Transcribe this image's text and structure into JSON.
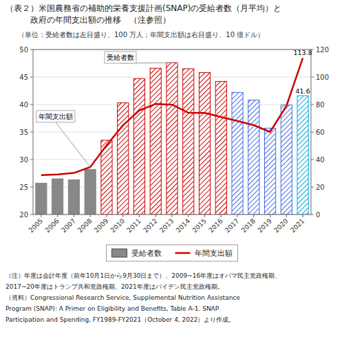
{
  "chart_data": {
    "type": "bar",
    "title": [
      "（表２）米国農務省の補助的栄養支援計画(SNAP)の受給者数（月平均）と",
      "　　　政府の年間支出額の推移　（注参照）"
    ],
    "subtitle": "（単位：受給者数は左目盛り、100 万人；年間支出額は右目盛り、10 億ドル）",
    "annotations": [
      "受給者数",
      "年間支出額"
    ],
    "notes": [
      "（注）年度は会計年度（前年10月1日から9月30日まで）、2009~16年度はオバマ民主党政権期、",
      "2017~20年度はトランプ共和党政権期、2021年度はバイデン民主党政権期。",
      "（資料）Congressional Research Service, Supplemental Nutrition Assistance",
      "Program (SNAP): A Primer on Eligibility and Benefits, Table A-1. SNAP",
      "Participation and Spending, FY1989-FY2021（October 4, 2022）より作成。"
    ],
    "categories": [
      "2005",
      "2006",
      "2007",
      "2008",
      "2009",
      "2010",
      "2011",
      "2012",
      "2013",
      "2014",
      "2015",
      "2016",
      "2017",
      "2018",
      "2019",
      "2020",
      "2021"
    ],
    "series": [
      {
        "name": "受給者数",
        "type": "bar",
        "color": "#888888",
        "colors": [
          "#888888",
          "#888888",
          "#888888",
          "#888888",
          "#CC0000",
          "#CC0000",
          "#CC0000",
          "#CC0000",
          "#CC0000",
          "#CC0000",
          "#CC0000",
          "#CC0000",
          "#4169E1",
          "#4169E1",
          "#4169E1",
          "#4169E1",
          "#00AADD"
        ],
        "values": [
          25.7,
          26.5,
          26.3,
          28.2,
          33.5,
          40.3,
          44.7,
          46.6,
          47.6,
          46.5,
          45.8,
          44.2,
          42.2,
          40.8,
          35.7,
          39.9,
          41.6
        ],
        "value_labels": [
          null,
          null,
          null,
          null,
          null,
          null,
          null,
          null,
          null,
          null,
          null,
          null,
          null,
          null,
          null,
          null,
          "41.6"
        ]
      },
      {
        "name": "年間支出額",
        "type": "line",
        "axis": "y2",
        "color": "#CC0000",
        "values": [
          28.6,
          29.1,
          30.2,
          34.5,
          50.4,
          64.8,
          75.7,
          80.4,
          79.9,
          74.0,
          73.9,
          70.9,
          68.0,
          65.0,
          60.0,
          79.0,
          113.8
        ],
        "value_labels": [
          null,
          null,
          null,
          null,
          null,
          null,
          null,
          null,
          null,
          null,
          null,
          null,
          null,
          null,
          null,
          null,
          "113.8"
        ]
      }
    ],
    "ylim": [
      20,
      50
    ],
    "yticks": [
      20,
      25,
      30,
      35,
      40,
      45,
      50
    ],
    "y2lim": [
      0,
      120
    ],
    "y2ticks": [
      0,
      20,
      40,
      60,
      80,
      100,
      120
    ],
    "grid": true,
    "legend": "bottom"
  }
}
